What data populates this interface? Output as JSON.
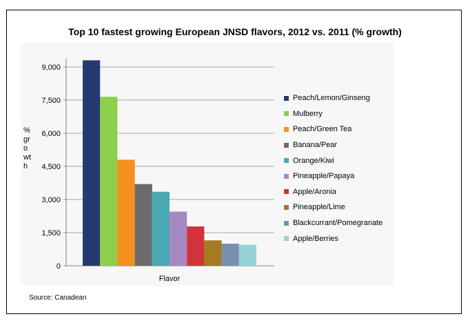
{
  "chart_data": {
    "type": "bar",
    "title": "Top 10 fastest growing European JNSD flavors, 2012 vs. 2011 (% growth)",
    "xlabel": "Flavor",
    "ylabel": "% growth",
    "ylim": [
      0,
      9000
    ],
    "yticks": [
      0,
      1500,
      3000,
      4500,
      6000,
      7500,
      9000
    ],
    "ytick_labels": [
      "0",
      "1,500",
      "3,000",
      "4,500",
      "6,000",
      "7,500",
      "9,000"
    ],
    "grid": true,
    "legend_position": "right",
    "series": [
      {
        "name": "Peach/Lemon/Ginseng",
        "value": 9300,
        "color": "#253a6e"
      },
      {
        "name": "Mulberry",
        "value": 7650,
        "color": "#8ccf4b"
      },
      {
        "name": "Peach/Green Tea",
        "value": 4800,
        "color": "#f4911e"
      },
      {
        "name": "Banana/Pear",
        "value": 3700,
        "color": "#6b6b6b"
      },
      {
        "name": "Orange/Kiwi",
        "value": 3350,
        "color": "#4aa9b3"
      },
      {
        "name": "Pineapple/Papaya",
        "value": 2450,
        "color": "#a689c2"
      },
      {
        "name": "Apple/Aronia",
        "value": 1780,
        "color": "#d13438"
      },
      {
        "name": "Pineapple/Lime",
        "value": 1150,
        "color": "#a57a22"
      },
      {
        "name": "Blackcurrant/Pomegranate",
        "value": 1000,
        "color": "#7b8db0"
      },
      {
        "name": "Apple/Berries",
        "value": 950,
        "color": "#96d2d4"
      }
    ]
  },
  "source": "Source: Canadean"
}
